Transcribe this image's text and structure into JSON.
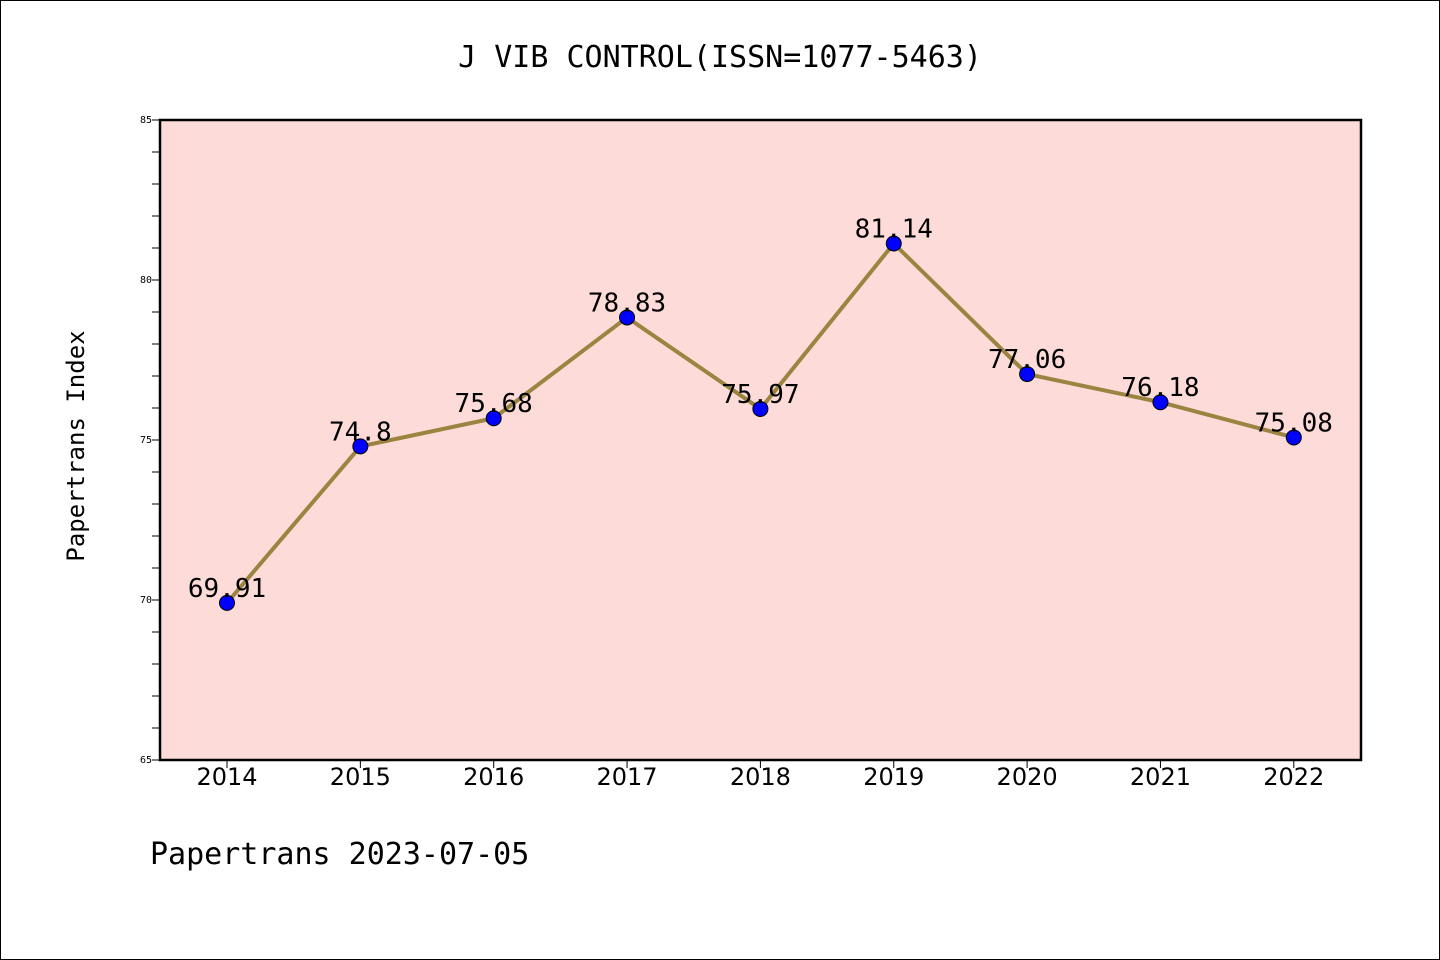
{
  "chart_data": {
    "type": "line",
    "title": "J VIB CONTROL(ISSN=1077-5463)",
    "xlabel": "",
    "ylabel": "Papertrans Index",
    "categories": [
      "2014",
      "2015",
      "2016",
      "2017",
      "2018",
      "2019",
      "2020",
      "2021",
      "2022"
    ],
    "series": [
      {
        "values": [
          69.91,
          74.8,
          75.68,
          78.83,
          75.97,
          81.14,
          77.06,
          76.18,
          75.08
        ],
        "labels": [
          "69.91",
          "74.8",
          "75.68",
          "78.83",
          "75.97",
          "81.14",
          "77.06",
          "76.18",
          "75.08"
        ]
      }
    ],
    "ylim": [
      65,
      85
    ],
    "yticks": [
      65,
      70,
      75,
      80,
      85
    ],
    "grid": false,
    "colors": {
      "plot_background": "#fddbd8",
      "line": "#9a8440",
      "marker": "#0000ff"
    }
  },
  "footer": "Papertrans 2023-07-05"
}
